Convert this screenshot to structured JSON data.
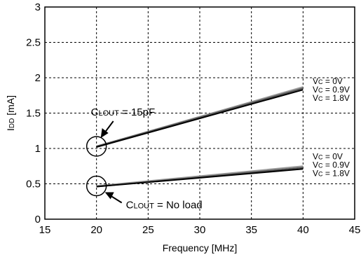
{
  "chart_data": {
    "type": "line",
    "xlabel": "Frequency [MHz]",
    "ylabel_main": "I",
    "ylabel_sub": "DD",
    "ylabel_unit": " [mA]",
    "xlim": [
      15,
      45
    ],
    "ylim": [
      0,
      3
    ],
    "x_ticks": [
      15,
      20,
      25,
      30,
      35,
      40,
      45
    ],
    "y_ticks": [
      0,
      0.5,
      1,
      1.5,
      2,
      2.5,
      3
    ],
    "y_tick_labels": [
      "0",
      "0.5",
      "1",
      "1.5",
      "2",
      "2.5",
      "3"
    ],
    "grid": true,
    "series": [
      {
        "group": "15pF",
        "vc": "0V",
        "color": "#9a9a9a",
        "x": [
          20,
          40
        ],
        "y": [
          1.03,
          1.87
        ]
      },
      {
        "group": "15pF",
        "vc": "0.9V",
        "color": "#555555",
        "x": [
          20,
          40
        ],
        "y": [
          1.03,
          1.85
        ]
      },
      {
        "group": "15pF",
        "vc": "1.8V",
        "color": "#000000",
        "x": [
          20,
          40
        ],
        "y": [
          1.02,
          1.83
        ]
      },
      {
        "group": "noload",
        "vc": "0V",
        "color": "#9a9a9a",
        "x": [
          20,
          40
        ],
        "y": [
          0.47,
          0.75
        ]
      },
      {
        "group": "noload",
        "vc": "0.9V",
        "color": "#555555",
        "x": [
          20,
          40
        ],
        "y": [
          0.46,
          0.73
        ]
      },
      {
        "group": "noload",
        "vc": "1.8V",
        "color": "#000000",
        "x": [
          20,
          40
        ],
        "y": [
          0.46,
          0.71
        ]
      }
    ],
    "annotations": {
      "clout_15pf": {
        "main": "C",
        "sub": "LOUT",
        "rest": " = 15pF",
        "target": [
          20,
          1.03
        ]
      },
      "clout_noload": {
        "main": "C",
        "sub": "LOUT",
        "rest": " = No load",
        "target": [
          20,
          0.47
        ]
      }
    },
    "vc_labels_15pf": [
      {
        "main": "V",
        "sub": "C",
        "rest": " = 0V"
      },
      {
        "main": "V",
        "sub": "C",
        "rest": " = 0.9V"
      },
      {
        "main": "V",
        "sub": "C",
        "rest": " = 1.8V"
      }
    ],
    "vc_labels_noload": [
      {
        "main": "V",
        "sub": "C",
        "rest": " = 0V"
      },
      {
        "main": "V",
        "sub": "C",
        "rest": " = 0.9V"
      },
      {
        "main": "V",
        "sub": "C",
        "rest": " = 1.8V"
      }
    ]
  }
}
